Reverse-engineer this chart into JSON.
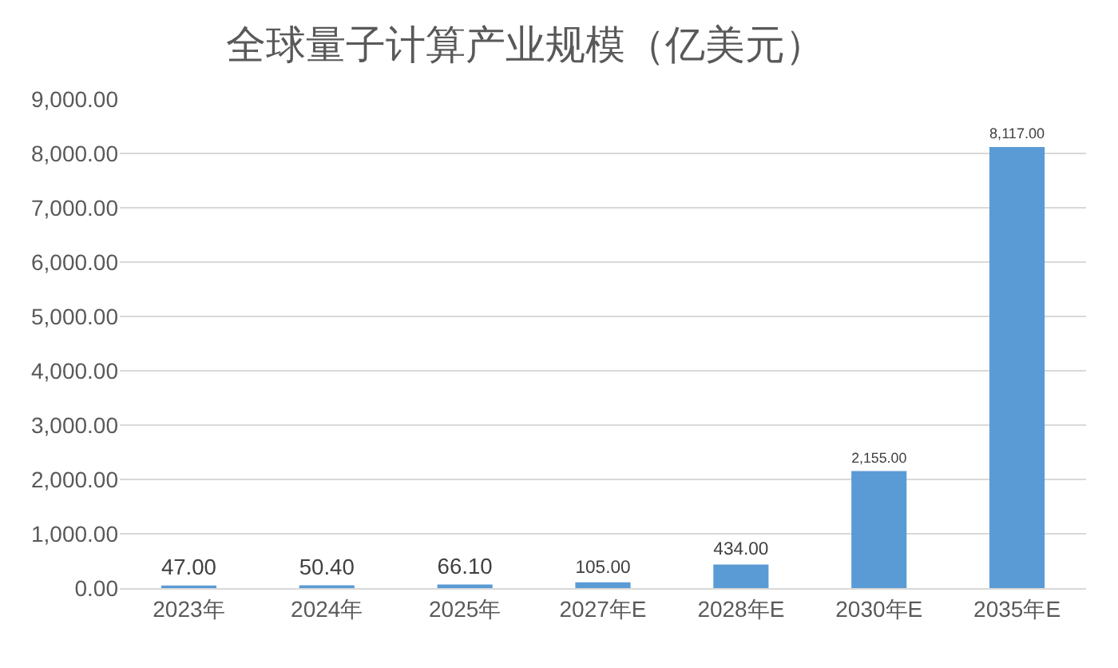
{
  "chart_data": {
    "type": "bar",
    "title": "全球量子计算产业规模（亿美元）",
    "categories": [
      "2023年",
      "2024年",
      "2025年",
      "2027年E",
      "2028年E",
      "2030年E",
      "2035年E"
    ],
    "values": [
      47,
      50.4,
      66.1,
      105,
      434,
      2155,
      8117
    ],
    "value_labels": [
      "47.00",
      "50.40",
      "66.10",
      "105.00",
      "434.00",
      "2,155.00",
      "8,117.00"
    ],
    "color": "#5b9bd5",
    "ylim": [
      0,
      9000
    ],
    "yticks": [
      {
        "value": 0,
        "label": "0.00"
      },
      {
        "value": 1000,
        "label": "1,000.00"
      },
      {
        "value": 2000,
        "label": "2,000.00"
      },
      {
        "value": 3000,
        "label": "3,000.00"
      },
      {
        "value": 4000,
        "label": "4,000.00"
      },
      {
        "value": 5000,
        "label": "5,000.00"
      },
      {
        "value": 6000,
        "label": "6,000.00"
      },
      {
        "value": 7000,
        "label": "7,000.00"
      },
      {
        "value": 8000,
        "label": "8,000.00"
      },
      {
        "value": 9000,
        "label": "9,000.00"
      }
    ],
    "grid": true
  }
}
